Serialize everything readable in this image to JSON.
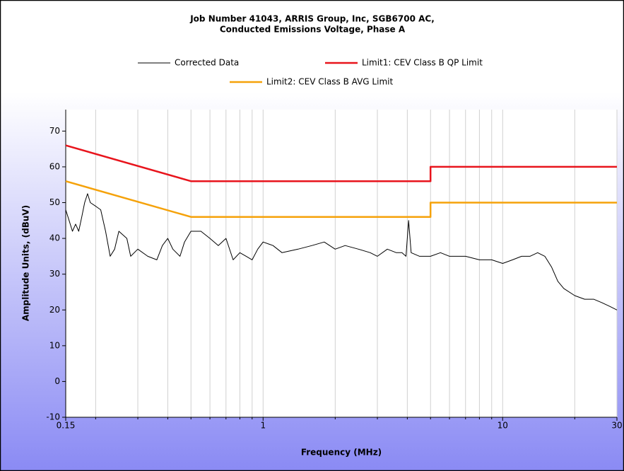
{
  "chart_data": {
    "type": "line",
    "title": [
      "Job Number 41043, ARRIS  Group, Inc, SGB6700 AC,",
      "Conducted Emissions Voltage, Phase A"
    ],
    "xlabel": "Frequency (MHz)",
    "ylabel": "Amplitude Units, (dBuV)",
    "xscale": "log",
    "xlim": [
      0.15,
      30
    ],
    "xticks": [
      0.15,
      1,
      10,
      30
    ],
    "xminorticks": [
      0.2,
      0.3,
      0.4,
      0.5,
      0.6,
      0.7,
      0.8,
      0.9,
      2,
      3,
      4,
      5,
      6,
      7,
      8,
      9,
      20
    ],
    "ylim": [
      -10,
      76
    ],
    "yticks": [
      -10,
      0,
      10,
      20,
      30,
      40,
      50,
      60,
      70
    ],
    "grid": "x",
    "series": [
      {
        "name": "Corrected Data",
        "color": "#000000",
        "x": [
          0.15,
          0.155,
          0.16,
          0.165,
          0.17,
          0.175,
          0.18,
          0.185,
          0.19,
          0.2,
          0.21,
          0.22,
          0.23,
          0.24,
          0.25,
          0.27,
          0.28,
          0.3,
          0.33,
          0.36,
          0.38,
          0.4,
          0.42,
          0.45,
          0.47,
          0.5,
          0.55,
          0.6,
          0.65,
          0.7,
          0.75,
          0.8,
          0.85,
          0.9,
          0.95,
          1.0,
          1.1,
          1.2,
          1.4,
          1.6,
          1.8,
          2.0,
          2.2,
          2.5,
          2.8,
          3.0,
          3.3,
          3.6,
          3.8,
          3.95,
          4.05,
          4.15,
          4.5,
          5,
          5.5,
          6,
          7,
          8,
          9,
          10,
          11,
          12,
          13,
          14,
          15,
          16,
          17,
          18,
          20,
          22,
          24,
          26,
          28,
          30
        ],
        "values": [
          48,
          45,
          42,
          44,
          42,
          46,
          50,
          52.5,
          50,
          49,
          48,
          42,
          35,
          37,
          42,
          40,
          35,
          37,
          35,
          34,
          38,
          40,
          37,
          35,
          39,
          42,
          42,
          40,
          38,
          40,
          34,
          36,
          35,
          34,
          37,
          39,
          38,
          36,
          37,
          38,
          39,
          37,
          38,
          37,
          36,
          35,
          37,
          36,
          36,
          35,
          45,
          36,
          35,
          35,
          36,
          35,
          35,
          34,
          34,
          33,
          34,
          35,
          35,
          36,
          35,
          32,
          28,
          26,
          24,
          23,
          23,
          22,
          21,
          20
        ]
      },
      {
        "name": "Limit1: CEV Class B QP Limit",
        "color": "#e8141c",
        "x": [
          0.15,
          0.5,
          5,
          5,
          30
        ],
        "values": [
          66,
          56,
          56,
          60,
          60
        ]
      },
      {
        "name": "Limit2: CEV Class B AVG Limit",
        "color": "#f5a20a",
        "x": [
          0.15,
          0.5,
          5,
          5,
          30
        ],
        "values": [
          56,
          46,
          46,
          50,
          50
        ]
      }
    ]
  }
}
